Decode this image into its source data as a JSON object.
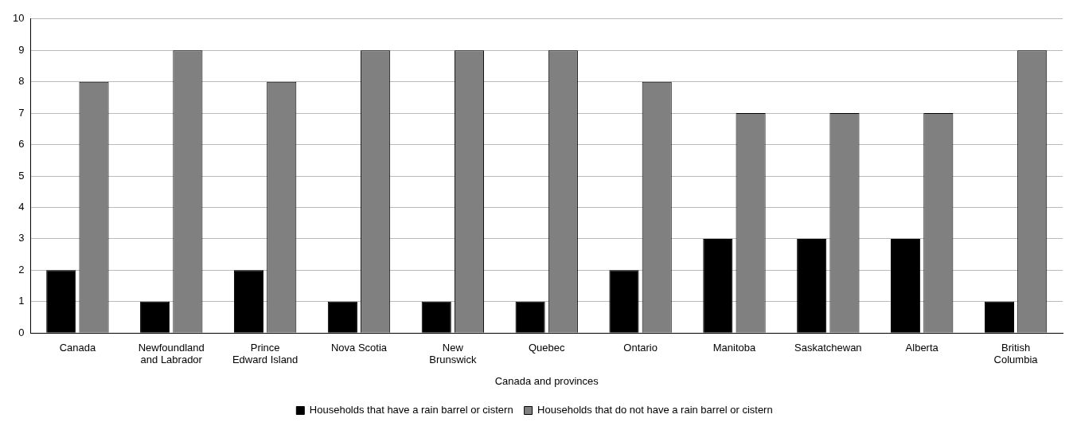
{
  "chart_data": {
    "type": "bar",
    "xlabel": "Canada and provinces",
    "categories": [
      "Canada",
      "Newfoundland\nand Labrador",
      "Prince\nEdward Island",
      "Nova Scotia",
      "New\nBrunswick",
      "Quebec",
      "Ontario",
      "Manitoba",
      "Saskatchewan",
      "Alberta",
      "British\nColumbia"
    ],
    "series": [
      {
        "name": "Households that have a rain barrel or cistern",
        "color": "#000000",
        "values": [
          2,
          1,
          2,
          1,
          1,
          1,
          2,
          3,
          3,
          3,
          1
        ]
      },
      {
        "name": "Households that do not have a rain barrel or cistern",
        "color": "#808080",
        "values": [
          8,
          9,
          8,
          9,
          9,
          9,
          8,
          7,
          7,
          7,
          9
        ]
      }
    ],
    "ylim": [
      0,
      10
    ],
    "yticks": [
      0,
      1,
      2,
      3,
      4,
      5,
      6,
      7,
      8,
      9,
      10
    ],
    "grid": "y",
    "legend": "bottom"
  }
}
